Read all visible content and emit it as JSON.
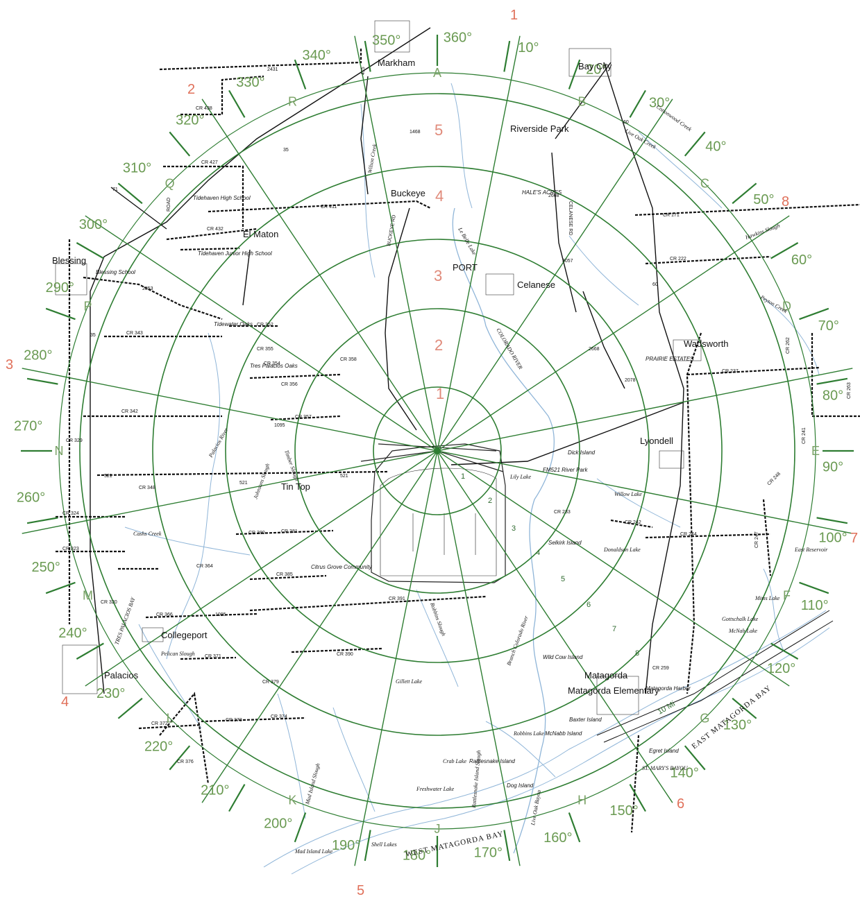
{
  "places": {
    "markham": "Markham",
    "bay_city": "Bay City",
    "riverside_park": "Riverside Park",
    "buckeye": "Buckeye",
    "hales_acres": "HALE'S ACRES",
    "el_maton": "El Maton",
    "blessing": "Blessing",
    "blessing_school": "Blessing School",
    "tidehaven_high": "Tidehaven High School",
    "tidehaven_junior": "Tidehaven Junior High School",
    "port": "PORT",
    "celanese": "Celanese",
    "tidewater_oaks": "Tidewater Oaks",
    "tres_palacios_oaks": "Tres Palacios Oaks",
    "wadsworth": "Wadsworth",
    "prairie_estates": "PRAIRIE ESTATES",
    "lyondell": "Lyondell",
    "tin_top": "Tin Top",
    "citrus_grove": "Citrus Grove Community",
    "collegeport": "Collegeport",
    "palacios": "Palacios",
    "matagorda": "Matagorda",
    "matagorda_elementary": "Matagorda Elementary",
    "matagorda_harbor": "Matagorda Harbor",
    "dick_island": "Dick Island",
    "fm521_river_park": "FM521 River Park",
    "selkirk_island": "Selkirk Island",
    "wild_cow_island": "Wild Cow Island",
    "baxter_island": "Baxter Island",
    "mcnabb_island": "McNabb Island",
    "rattlesnake_island": "Rattlesnake Island",
    "egret_island": "Egret Island",
    "dog_island": "Dog Island"
  },
  "water": {
    "west_matagorda_bay": "WEST MATAGORDA BAY",
    "east_matagorda_bay": "EAST MATAGORDA BAY",
    "tres_palacios_bay": "TRES PALACIOS BAY",
    "st_marys_bayou": "ST. MARY'S BAYOU",
    "colorado_river": "COLORADO RIVER",
    "lily_lake": "Lily Lake",
    "willow_lake": "Willow Lake",
    "donaldson_lake": "Donaldson Lake",
    "mims_lake": "Mims Lake",
    "gottschalk_lake": "Gottschalk Lake",
    "mcnab_lake": "McNab Lake",
    "robbins_lake": "Robbins Lake",
    "crab_lake": "Crab Lake",
    "freshwater_lake": "Freshwater Lake",
    "gillett_lake": "Gillett Lake",
    "mad_island_lake": "Mad Island Lake",
    "shell_lakes": "Shell Lakes",
    "east_reservoir": "East Reservoir",
    "le_belle_lake": "Le Belle Lake",
    "cashs_creek": "Cashs Creek",
    "wilson_creek": "Wilson Creek",
    "live_oak_creek": "Live Oak Creek",
    "cottonwood_creek": "Cottonwood Creek",
    "peyton_creek": "Peyton Creek",
    "hawkins_slough": "Hawkins Slough",
    "timber_slough": "Timber Slough",
    "robbins_slough": "Robbins Slough",
    "pelican_slough": "Pelican Slough",
    "mad_island_slough": "Mad Island Slough",
    "palacios_river": "Palacios River",
    "johnsons_slough": "Johnsons Slough",
    "branch_colorado_river": "Branch Colorado River",
    "rattlesnake_slough": "Rattlesnake Island Slough",
    "live_oak_bayou": "Live Oak Bayou"
  },
  "roads": {
    "cr438": "CR 438",
    "cr427": "CR 427",
    "cr411": "CR 411",
    "cr432": "CR 432",
    "cr171": "CR 171",
    "cr222": "CR 222",
    "cr343": "CR 343",
    "cr352": "CR 352",
    "cr355": "CR 355",
    "cr354": "CR 354",
    "cr356": "CR 356",
    "cr357": "CR 357",
    "cr358": "CR 358",
    "cr342": "CR 342",
    "cr237": "CR 237",
    "cr262": "CR 262",
    "cr263": "CR 263",
    "cr348": "CR 348",
    "cr324": "CR 324",
    "cr323": "CR 323",
    "cr380": "CR 380",
    "cr381": "CR 381",
    "cr364": "CR 364",
    "cr385": "CR 385",
    "cr391": "CR 391",
    "cr366": "CR 366",
    "cr320": "CR 320",
    "cr371": "CR 371",
    "cr390": "CR 390",
    "cr379": "CR 379",
    "cr373": "CR 373",
    "cr374": "CR 374",
    "cr372": "CR 372",
    "cr376": "CR 376",
    "cr242": "CR 242",
    "cr244": "CR 244",
    "cr247": "CR 247",
    "cr248": "CR 248",
    "cr259": "CR 259",
    "cr233": "CR 233",
    "cr329": "CR 329",
    "cr241": "CR 241",
    "r35": "35",
    "r60": "60",
    "r71": "71",
    "r415": "415",
    "r1468": "1468",
    "r2431": "2431",
    "r521": "521",
    "r1095": "1095",
    "r2853": "2853",
    "r2668": "2668",
    "r2078": "2078",
    "r2431b": "2431",
    "r3057": "3057",
    "celanese_rd": "CELANESE RD",
    "buckeye_rd": "BUCKEYE RD",
    "road": "ROAD",
    "fm521": "FM521"
  },
  "degrees": [
    "360°",
    "10°",
    "20°",
    "30°",
    "40°",
    "50°",
    "60°",
    "70°",
    "80°",
    "90°",
    "100°",
    "110°",
    "120°",
    "130°",
    "140°",
    "150°",
    "160°",
    "170°",
    "180°",
    "190°",
    "200°",
    "210°",
    "220°",
    "230°",
    "240°",
    "250°",
    "260°",
    "270°",
    "280°",
    "290°",
    "300°",
    "310°",
    "320°",
    "330°",
    "340°",
    "350°"
  ],
  "sectors": [
    "A",
    "B",
    "C",
    "D",
    "E",
    "F",
    "G",
    "H",
    "J",
    "K",
    "L",
    "M",
    "N",
    "P",
    "Q",
    "R"
  ],
  "zones": [
    "1",
    "2",
    "3",
    "4",
    "5",
    "6",
    "7",
    "8"
  ],
  "ring_labels": [
    "1",
    "2",
    "3",
    "4",
    "5"
  ],
  "mile_labels": [
    "1",
    "2",
    "3",
    "4",
    "5",
    "6",
    "7",
    "8",
    "10 Mi"
  ],
  "colors": {
    "rings": "#2e7d32",
    "degree_labels": "#6a9a52",
    "zone_labels": "#e0705a",
    "water": "#8fb5d8",
    "roads": "#111111"
  }
}
